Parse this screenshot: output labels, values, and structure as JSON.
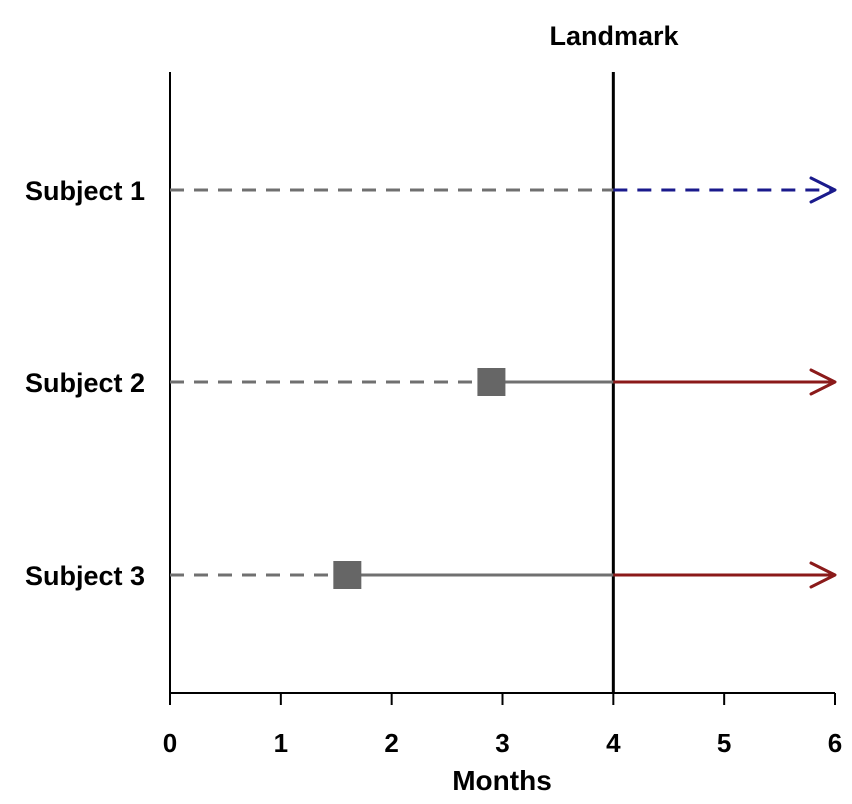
{
  "chart_data": {
    "type": "line",
    "xlabel": "Months",
    "xlim": [
      0,
      6
    ],
    "xticks": [
      "0",
      "1",
      "2",
      "3",
      "4",
      "5",
      "6"
    ],
    "grid": false,
    "landmark": {
      "label": "Landmark",
      "x": 4
    },
    "subjects": [
      {
        "label": "Subject 1",
        "event_x": null,
        "after_landmark_style": "dashed",
        "after_landmark_color": "#1a1a8c"
      },
      {
        "label": "Subject 2",
        "event_x": 2.9,
        "after_landmark_style": "solid",
        "after_landmark_color": "#8b1a1a"
      },
      {
        "label": "Subject 3",
        "event_x": 1.6,
        "after_landmark_style": "solid",
        "after_landmark_color": "#8b1a1a"
      }
    ]
  },
  "colors": {
    "pre_event_dashed": "#707070",
    "post_event_solid": "#707070",
    "event_marker": "#666666",
    "axis": "#000000"
  }
}
